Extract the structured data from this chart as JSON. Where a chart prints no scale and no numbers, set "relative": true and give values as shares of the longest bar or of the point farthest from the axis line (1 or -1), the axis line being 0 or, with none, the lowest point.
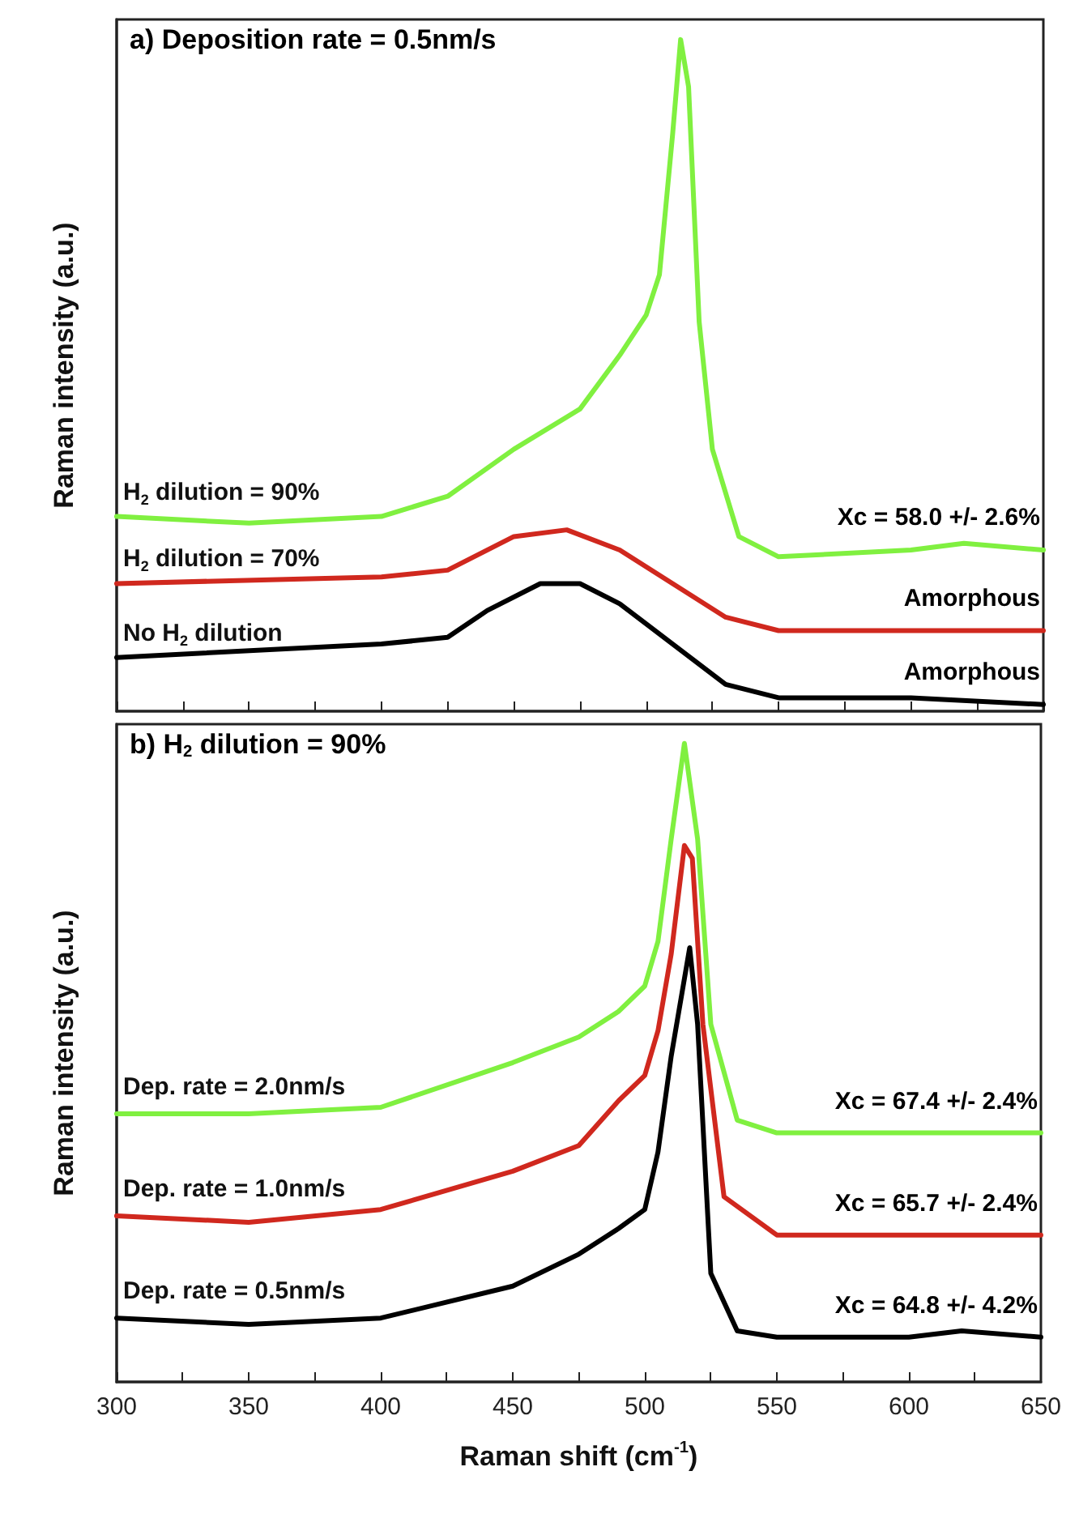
{
  "chart_data": [
    {
      "type": "line",
      "title": "a) Deposition rate = 0.5nm/s",
      "ylabel": "Raman intensity (a.u.)",
      "relative": true,
      "xlim": [
        300,
        650
      ],
      "xticks": [
        300,
        {
          "value": 325,
          "label": null
        },
        350,
        {
          "value": 375,
          "label": null
        },
        400,
        {
          "value": 425,
          "label": null
        },
        450,
        {
          "value": 475,
          "label": null
        },
        500,
        {
          "value": 525,
          "label": null
        },
        550,
        {
          "value": 575,
          "label": null
        },
        600,
        {
          "value": 625,
          "label": null
        },
        650
      ],
      "tick_labels": false,
      "grid": false,
      "legend": false,
      "marker": "none",
      "line_style": "solid",
      "series": [
        {
          "name": "H$_{2}$ dilution = 90%",
          "color": "#80f040",
          "x": [
            300,
            350,
            400,
            425,
            450,
            475,
            490,
            500,
            505,
            510,
            513,
            516,
            520,
            525,
            535,
            550,
            600,
            620,
            650
          ],
          "values": [
            0.29,
            0.28,
            0.29,
            0.32,
            0.39,
            0.45,
            0.53,
            0.59,
            0.65,
            0.86,
            1.0,
            0.93,
            0.58,
            0.39,
            0.26,
            0.23,
            0.24,
            0.25,
            0.24
          ]
        },
        {
          "name": "H$_{2}$ dilution = 70%",
          "color": "#d0281e",
          "x": [
            300,
            400,
            425,
            450,
            470,
            490,
            510,
            530,
            550,
            600,
            650
          ],
          "values": [
            0.19,
            0.2,
            0.21,
            0.26,
            0.27,
            0.24,
            0.19,
            0.14,
            0.12,
            0.12,
            0.12
          ]
        },
        {
          "name": "No H$_{2}$ dilution",
          "color": "#000000",
          "x": [
            300,
            400,
            425,
            440,
            460,
            475,
            490,
            510,
            530,
            550,
            600,
            650
          ],
          "values": [
            0.08,
            0.1,
            0.11,
            0.15,
            0.19,
            0.19,
            0.16,
            0.1,
            0.04,
            0.02,
            0.02,
            0.01
          ]
        }
      ],
      "annotations": [
        "Xc = 58.0 +/- 2.6%",
        "Amorphous",
        "Amorphous"
      ]
    },
    {
      "type": "line",
      "title": "b) H$_{2}$ dilution = 90%",
      "xlabel": "Raman shift (cm$^{-1}$)",
      "ylabel": "Raman intensity (a.u.)",
      "relative": true,
      "xlim": [
        300,
        650
      ],
      "xticks": [
        300,
        {
          "value": 325,
          "label": null
        },
        350,
        {
          "value": 375,
          "label": null
        },
        400,
        {
          "value": 425,
          "label": null
        },
        450,
        {
          "value": 475,
          "label": null
        },
        500,
        {
          "value": 525,
          "label": null
        },
        550,
        {
          "value": 575,
          "label": null
        },
        600,
        {
          "value": 625,
          "label": null
        },
        650
      ],
      "tick_labels": "x",
      "grid": false,
      "legend": false,
      "marker": "none",
      "line_style": "solid",
      "series": [
        {
          "name": "Dep. rate = 2.0nm/s",
          "color": "#80f040",
          "x": [
            300,
            350,
            400,
            450,
            475,
            490,
            500,
            505,
            510,
            515,
            520,
            525,
            535,
            550,
            600,
            650
          ],
          "values": [
            0.42,
            0.42,
            0.43,
            0.5,
            0.54,
            0.58,
            0.62,
            0.69,
            0.85,
            1.0,
            0.85,
            0.56,
            0.41,
            0.39,
            0.39,
            0.39
          ]
        },
        {
          "name": "Dep. rate = 1.0nm/s",
          "color": "#d0281e",
          "x": [
            300,
            350,
            400,
            450,
            475,
            490,
            500,
            505,
            510,
            515,
            518,
            522,
            530,
            550,
            600,
            650
          ],
          "values": [
            0.26,
            0.25,
            0.27,
            0.33,
            0.37,
            0.44,
            0.48,
            0.55,
            0.67,
            0.84,
            0.82,
            0.56,
            0.29,
            0.23,
            0.23,
            0.23
          ]
        },
        {
          "name": "Dep. rate = 0.5nm/s",
          "color": "#000000",
          "x": [
            300,
            350,
            400,
            450,
            475,
            490,
            500,
            505,
            510,
            517,
            520,
            525,
            535,
            550,
            600,
            620,
            650
          ],
          "values": [
            0.1,
            0.09,
            0.1,
            0.15,
            0.2,
            0.24,
            0.27,
            0.36,
            0.51,
            0.68,
            0.56,
            0.17,
            0.08,
            0.07,
            0.07,
            0.08,
            0.07
          ]
        }
      ],
      "annotations": [
        "Xc = 67.4 +/- 2.4%",
        "Xc = 65.7 +/- 2.4%",
        "Xc = 64.8 +/- 4.2%"
      ]
    }
  ]
}
